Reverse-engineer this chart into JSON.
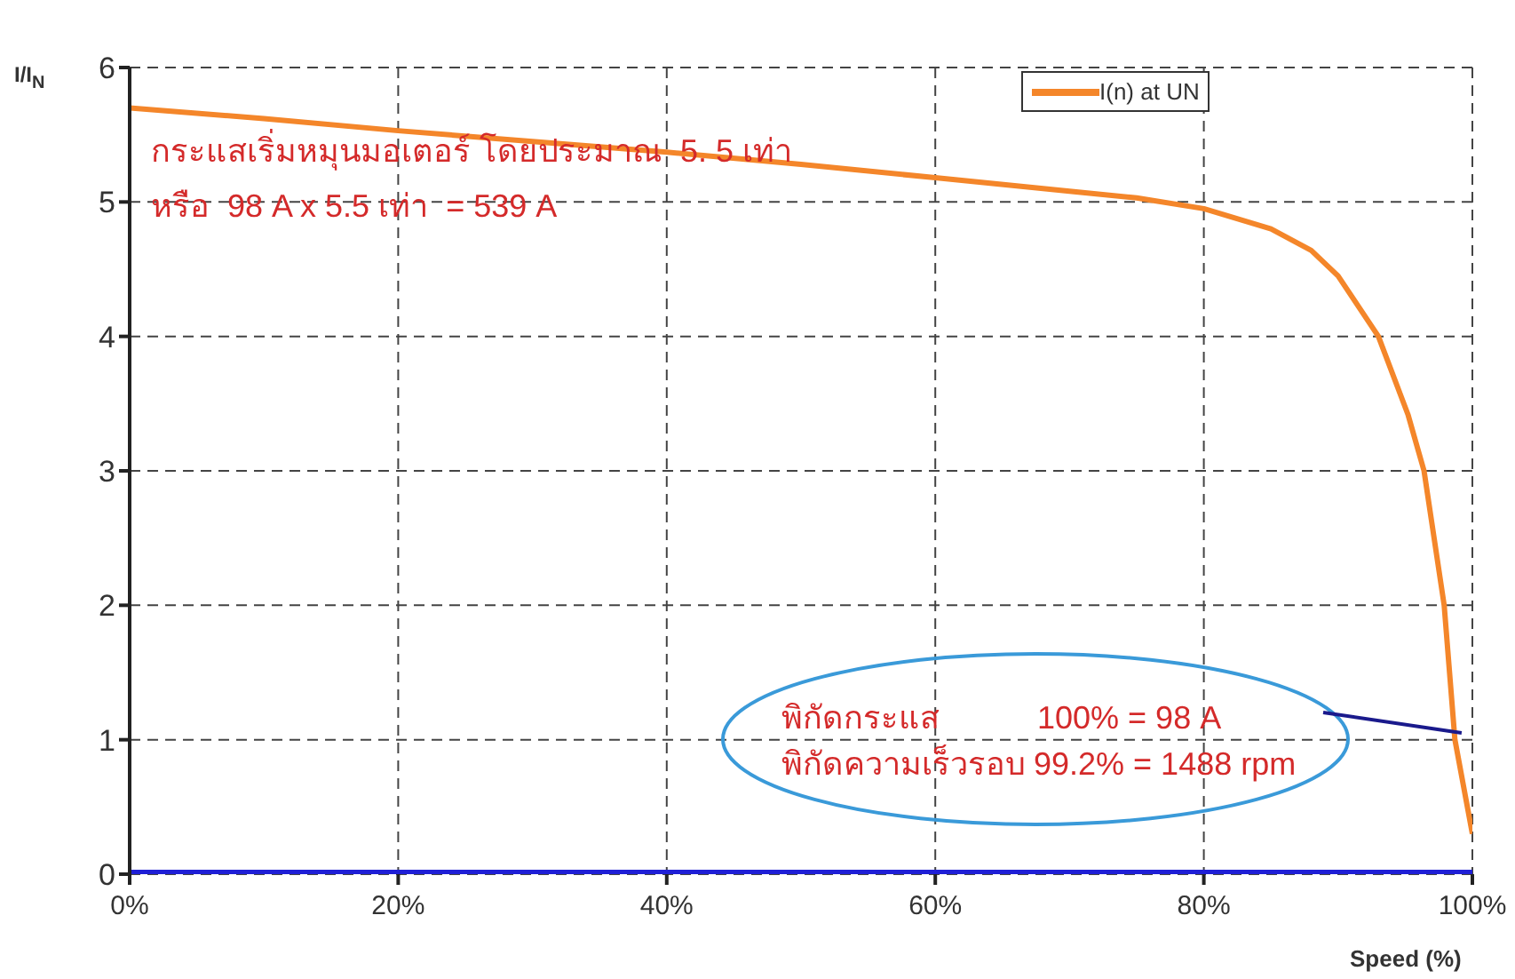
{
  "chart_data": {
    "type": "line",
    "xlabel": "Speed (%)",
    "ylabel": "I/I$_{N}$",
    "x": [
      0,
      10,
      20,
      30,
      40,
      50,
      60,
      70,
      75,
      80,
      85,
      88,
      90,
      93,
      95.2,
      96.4,
      97.9,
      98.7,
      100
    ],
    "series": [
      {
        "name": "I(n) at UN",
        "color": "#f4862a",
        "values": [
          5.7,
          5.62,
          5.53,
          5.45,
          5.37,
          5.28,
          5.18,
          5.08,
          5.03,
          4.95,
          4.8,
          4.64,
          4.45,
          4.0,
          3.42,
          3.0,
          2.0,
          1.0,
          0.3
        ]
      },
      {
        "color": "#1f1fd6",
        "x": [
          0,
          100
        ],
        "values": [
          0,
          0
        ]
      }
    ],
    "xlim": [
      0,
      100
    ],
    "xticks": [
      {
        "value": 0,
        "label": "0%"
      },
      {
        "value": 20,
        "label": "20%"
      },
      {
        "value": 40,
        "label": "40%"
      },
      {
        "value": 60,
        "label": "60%"
      },
      {
        "value": 80,
        "label": "80%"
      },
      {
        "value": 100,
        "label": "100%"
      }
    ],
    "ylim": [
      0,
      6
    ],
    "yticks": [
      0,
      1,
      2,
      3,
      4,
      5,
      6
    ],
    "annotations": [
      "กระแสเริ่มหมุนมอเตอร์ โดยประมาณ  5. 5 เท่า",
      "หรือ  98 A x 5.5 เท่า  = 539 A",
      "พิกัดกระแส           100% = 98 A",
      "พิกัดความเร็วรอบ 99.2% = 1488 rpm"
    ],
    "grid": true,
    "legend": "top right",
    "marker": "none",
    "line_style": "solid"
  }
}
